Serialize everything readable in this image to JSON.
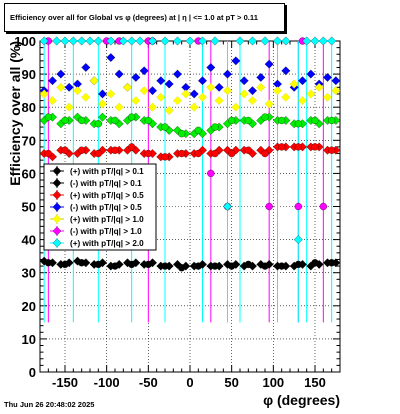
{
  "footer": "Thu Jun 26 20:48:02 2025",
  "chart_data": {
    "type": "scatter",
    "title": "Efficiency over all for Global vs φ (degrees) at | η | <= 1.0 at pT > 0.11",
    "xlabel": "φ (degrees)",
    "ylabel": "Efficiency over all (%)",
    "xlim": [
      -180,
      180
    ],
    "ylim": [
      0,
      100
    ],
    "xticks": [
      -150,
      -100,
      -50,
      0,
      50,
      100,
      150
    ],
    "yticks": [
      0,
      10,
      20,
      30,
      40,
      50,
      60,
      70,
      80,
      90,
      100
    ],
    "grid": true,
    "legend_position": "center-left",
    "series": [
      {
        "name": "(+) with pT/|q| > 0.1",
        "color": "#000000",
        "marker": "diamond",
        "x": [
          -175,
          -165,
          -155,
          -145,
          -135,
          -125,
          -115,
          -105,
          -95,
          -85,
          -75,
          -65,
          -55,
          -45,
          -35,
          -25,
          -15,
          -5,
          5,
          15,
          25,
          35,
          45,
          55,
          65,
          75,
          85,
          95,
          105,
          115,
          125,
          135,
          145,
          155,
          165,
          175
        ],
        "y": [
          33.5,
          33,
          32.5,
          33,
          33.5,
          33,
          32.5,
          33,
          32,
          32.5,
          33,
          33,
          32.5,
          33,
          32,
          32,
          32.5,
          32,
          32,
          32.5,
          32,
          32,
          32.5,
          32.5,
          32,
          32,
          32.5,
          32.5,
          32,
          32,
          32,
          32.5,
          32,
          32.5,
          33,
          33
        ]
      },
      {
        "name": "(-) with pT/|q| > 0.1",
        "color": "#000000",
        "marker": "circle",
        "x": [
          -170,
          -150,
          -130,
          -110,
          -90,
          -70,
          -50,
          -30,
          -10,
          10,
          30,
          50,
          70,
          90,
          110,
          130,
          150,
          170
        ],
        "y": [
          33,
          32.5,
          33,
          32.5,
          32,
          32.5,
          32.5,
          32,
          31.5,
          32,
          32,
          32,
          32.5,
          32,
          32,
          32.5,
          33,
          33
        ]
      },
      {
        "name": "(+) with pT/|q| > 0.5",
        "color": "#ff0000",
        "marker": "diamond",
        "x": [
          -175,
          -165,
          -155,
          -145,
          -135,
          -125,
          -115,
          -105,
          -95,
          -85,
          -75,
          -65,
          -55,
          -45,
          -35,
          -25,
          -15,
          -5,
          5,
          15,
          25,
          35,
          45,
          55,
          65,
          75,
          85,
          95,
          105,
          115,
          125,
          135,
          145,
          155,
          165,
          175
        ],
        "y": [
          66,
          65,
          67,
          66,
          66,
          67,
          66,
          67,
          67,
          67,
          67,
          67,
          66,
          66,
          65,
          65,
          66,
          66,
          66,
          67,
          66,
          67,
          67,
          67,
          67,
          66,
          67,
          67,
          68,
          68,
          68,
          68,
          68,
          68,
          67,
          67
        ]
      },
      {
        "name": "(-) with pT/|q| > 0.5",
        "color": "#ff0000",
        "marker": "circle",
        "x": [
          -170,
          -150,
          -130,
          -110,
          -90,
          -70,
          -50,
          -30,
          -10,
          10,
          30,
          50,
          70,
          90,
          110,
          130,
          150,
          170
        ],
        "y": [
          66,
          67,
          67,
          66,
          67,
          68,
          66,
          65,
          66,
          66,
          66,
          66,
          67,
          66,
          68,
          68,
          68,
          67
        ]
      },
      {
        "name": "(+) with pT/|q| > 1.0",
        "color": "#00ee00",
        "marker": "diamond",
        "x": [
          -175,
          -165,
          -155,
          -145,
          -135,
          -125,
          -115,
          -105,
          -95,
          -85,
          -75,
          -65,
          -55,
          -45,
          -35,
          -25,
          -15,
          -5,
          5,
          15,
          25,
          35,
          45,
          55,
          65,
          75,
          85,
          95,
          105,
          115,
          125,
          135,
          145,
          155,
          165,
          175
        ],
        "y": [
          76,
          77,
          75,
          76,
          77,
          76,
          75,
          77,
          76,
          75,
          76,
          77,
          76,
          75,
          74,
          73,
          73,
          72,
          72,
          72,
          73,
          74,
          75,
          76,
          76,
          75,
          76,
          77,
          76,
          76,
          75,
          75,
          76,
          75,
          76,
          76
        ]
      },
      {
        "name": "(-) with pT/|q| > 1.0",
        "color": "#00ee00",
        "marker": "circle",
        "x": [
          -170,
          -150,
          -130,
          -110,
          -90,
          -70,
          -50,
          -30,
          -10,
          10,
          30,
          50,
          70,
          90,
          110,
          130,
          150,
          170
        ],
        "y": [
          77,
          76,
          76,
          75,
          76,
          77,
          76,
          74,
          72,
          73,
          74,
          76,
          76,
          77,
          76,
          75,
          76,
          76
        ]
      },
      {
        "name": "(+) with pT/|q| > 0.5",
        "color": "#0000ff",
        "marker": "diamond",
        "x": [
          -175,
          -165,
          -155,
          -145,
          -135,
          -125,
          -115,
          -105,
          -95,
          -85,
          -75,
          -65,
          -55,
          -45,
          -35,
          -25,
          -15,
          -5,
          5,
          15,
          25,
          35,
          45,
          55,
          65,
          75,
          85,
          95,
          105,
          115,
          125,
          135,
          145,
          155,
          165,
          175
        ],
        "y": [
          85,
          88,
          90,
          86,
          87,
          92,
          88,
          84,
          95,
          90,
          86,
          89,
          91,
          85,
          88,
          87,
          90,
          86,
          84,
          88,
          92,
          86,
          90,
          94,
          88,
          85,
          89,
          93,
          87,
          91,
          86,
          88,
          90,
          87,
          89,
          88
        ]
      },
      {
        "name": "(-) with pT/|q| > 1.0",
        "color": "#ffff00",
        "marker": "diamond",
        "x": [
          -175,
          -165,
          -155,
          -145,
          -135,
          -125,
          -115,
          -105,
          -95,
          -85,
          -75,
          -65,
          -55,
          -45,
          -35,
          -25,
          -15,
          -5,
          5,
          15,
          25,
          35,
          45,
          55,
          65,
          75,
          85,
          95,
          105,
          115,
          125,
          135,
          145,
          155,
          165,
          175
        ],
        "y": [
          84,
          82,
          86,
          80,
          85,
          83,
          88,
          81,
          84,
          80,
          86,
          82,
          85,
          80,
          83,
          79,
          82,
          84,
          80,
          83,
          86,
          82,
          85,
          80,
          84,
          82,
          86,
          81,
          85,
          83,
          87,
          82,
          84,
          86,
          83,
          85
        ]
      },
      {
        "name": "(-) with pT/|q| > 1.0",
        "color": "#ff00ff",
        "marker": "circle",
        "x": [
          -170,
          -100,
          -85,
          -50,
          -45,
          10,
          25,
          45,
          95,
          130,
          135,
          160
        ],
        "y": [
          100,
          100,
          100,
          100,
          100,
          100,
          60,
          50,
          50,
          50,
          100,
          50
        ]
      },
      {
        "name": "(+) with pT/|q| > 2.0",
        "color": "#00ffff",
        "marker": "diamond",
        "x": [
          -175,
          -160,
          -150,
          -140,
          -130,
          -120,
          -110,
          -95,
          -80,
          -70,
          -60,
          -45,
          -30,
          -15,
          0,
          15,
          30,
          45,
          60,
          75,
          90,
          105,
          115,
          130,
          140,
          150,
          160,
          170
        ],
        "y": [
          100,
          100,
          100,
          100,
          100,
          100,
          100,
          100,
          100,
          100,
          100,
          100,
          100,
          100,
          100,
          100,
          100,
          50,
          100,
          100,
          100,
          100,
          100,
          40,
          100,
          100,
          100,
          100
        ]
      }
    ],
    "legend": [
      {
        "label": "(+) with pT/|q| > 0.1",
        "color": "#000000"
      },
      {
        "label": "(-) with pT/|q| > 0.1",
        "color": "#000000"
      },
      {
        "label": "(+) with pT/|q| > 0.5",
        "color": "#ff0000"
      },
      {
        "label": "(-) with pT/|q| > 0.5",
        "color": "#0000ff"
      },
      {
        "label": "(+) with pT/|q| > 1.0",
        "color": "#ffff00"
      },
      {
        "label": "(-) with pT/|q| > 1.0",
        "color": "#ff00ff"
      },
      {
        "label": "(+) with pT/|q| > 2.0",
        "color": "#00ffff"
      }
    ]
  }
}
